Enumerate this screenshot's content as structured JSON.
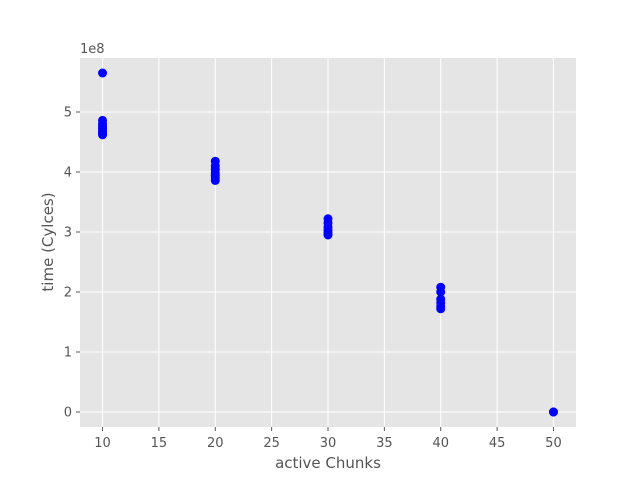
{
  "chart_data": {
    "type": "scatter",
    "xlabel": "active Chunks",
    "ylabel": "time (Cylces)",
    "y_offset_label": "1e8",
    "xlim": [
      8,
      52
    ],
    "ylim": [
      -0.25,
      5.9
    ],
    "y_scale_factor": 100000000,
    "grid": true,
    "x_ticks": [
      "10",
      "15",
      "20",
      "25",
      "30",
      "35",
      "40",
      "45",
      "50"
    ],
    "y_ticks": [
      "0",
      "1",
      "2",
      "3",
      "4",
      "5"
    ],
    "marker_color": "#0000ff",
    "background_color": "#e5e5e5",
    "points": [
      {
        "x": 10,
        "y": 5.65
      },
      {
        "x": 10,
        "y": 4.86
      },
      {
        "x": 10,
        "y": 4.8
      },
      {
        "x": 10,
        "y": 4.76
      },
      {
        "x": 10,
        "y": 4.72
      },
      {
        "x": 10,
        "y": 4.68
      },
      {
        "x": 10,
        "y": 4.65
      },
      {
        "x": 10,
        "y": 4.62
      },
      {
        "x": 20,
        "y": 4.18
      },
      {
        "x": 20,
        "y": 4.1
      },
      {
        "x": 20,
        "y": 4.04
      },
      {
        "x": 20,
        "y": 3.98
      },
      {
        "x": 20,
        "y": 3.94
      },
      {
        "x": 20,
        "y": 3.9
      },
      {
        "x": 20,
        "y": 3.86
      },
      {
        "x": 30,
        "y": 3.22
      },
      {
        "x": 30,
        "y": 3.15
      },
      {
        "x": 30,
        "y": 3.08
      },
      {
        "x": 30,
        "y": 3.03
      },
      {
        "x": 30,
        "y": 2.99
      },
      {
        "x": 30,
        "y": 2.95
      },
      {
        "x": 40,
        "y": 2.08
      },
      {
        "x": 40,
        "y": 2.0
      },
      {
        "x": 40,
        "y": 1.88
      },
      {
        "x": 40,
        "y": 1.82
      },
      {
        "x": 40,
        "y": 1.76
      },
      {
        "x": 40,
        "y": 1.72
      },
      {
        "x": 50,
        "y": 0.0
      },
      {
        "x": 50,
        "y": 0.0
      }
    ]
  }
}
